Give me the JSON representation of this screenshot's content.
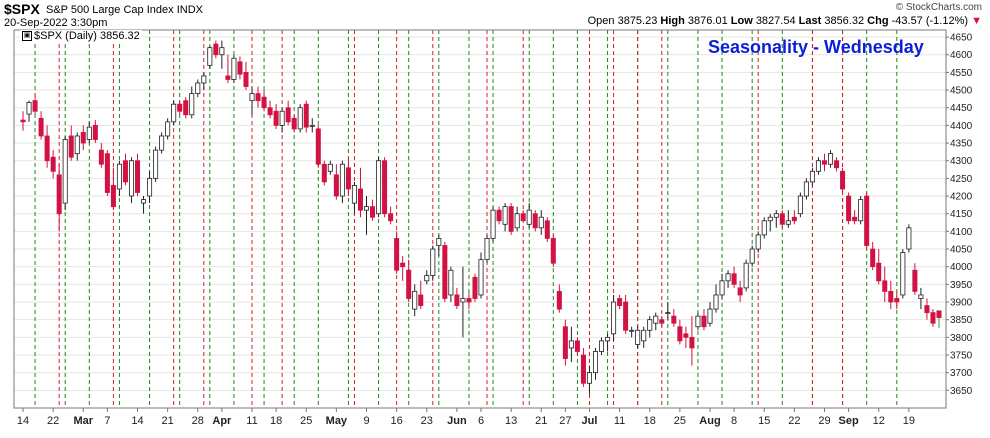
{
  "header": {
    "symbol": "$SPX",
    "name": "S&P 500 Large Cap Index",
    "exchange": "INDX",
    "date": "20-Sep-2022 3:30pm",
    "watermark": "© StockCharts.com",
    "open_label": "Open",
    "open": "3875.23",
    "high_label": "High",
    "high": "3876.01",
    "low_label": "Low",
    "low": "3827.54",
    "last_label": "Last",
    "last": "3856.32",
    "chg_label": "Chg",
    "chg": "-43.57 (-1.12%)",
    "chg_arrow": "▼"
  },
  "legend": "$SPX (Daily) 3856.32",
  "title": "Seasonality - Wednesday",
  "colors": {
    "title": "#0b1fd8",
    "up_candle": "#ffffff",
    "down_candle": "#d21242",
    "grid": "#e6e6e6",
    "green_vline": "#1a8c1a",
    "red_vline": "#d42020"
  },
  "chart_data": {
    "type": "candlestick",
    "title": "Seasonality - Wednesday",
    "ylim": [
      3600,
      4670
    ],
    "y_ticks": [
      3650,
      3700,
      3750,
      3800,
      3850,
      3900,
      3950,
      4000,
      4050,
      4100,
      4150,
      4200,
      4250,
      4300,
      4350,
      4400,
      4450,
      4500,
      4550,
      4600,
      4650
    ],
    "x_ticks": [
      {
        "label": "14",
        "i": 0
      },
      {
        "label": "22",
        "i": 5
      },
      {
        "label": "Mar",
        "i": 10,
        "bold": true
      },
      {
        "label": "7",
        "i": 14
      },
      {
        "label": "14",
        "i": 19
      },
      {
        "label": "21",
        "i": 24
      },
      {
        "label": "28",
        "i": 29
      },
      {
        "label": "Apr",
        "i": 33,
        "bold": true
      },
      {
        "label": "11",
        "i": 38
      },
      {
        "label": "18",
        "i": 42
      },
      {
        "label": "25",
        "i": 47
      },
      {
        "label": "May",
        "i": 52,
        "bold": true
      },
      {
        "label": "9",
        "i": 57
      },
      {
        "label": "16",
        "i": 62
      },
      {
        "label": "23",
        "i": 67
      },
      {
        "label": "Jun",
        "i": 72,
        "bold": true
      },
      {
        "label": "6",
        "i": 76
      },
      {
        "label": "13",
        "i": 81
      },
      {
        "label": "21",
        "i": 86
      },
      {
        "label": "27",
        "i": 90
      },
      {
        "label": "Jul",
        "i": 94,
        "bold": true
      },
      {
        "label": "11",
        "i": 99
      },
      {
        "label": "18",
        "i": 104
      },
      {
        "label": "25",
        "i": 109
      },
      {
        "label": "Aug",
        "i": 114,
        "bold": true
      },
      {
        "label": "8",
        "i": 118
      },
      {
        "label": "15",
        "i": 123
      },
      {
        "label": "22",
        "i": 128
      },
      {
        "label": "29",
        "i": 133
      },
      {
        "label": "Sep",
        "i": 137,
        "bold": true
      },
      {
        "label": "12",
        "i": 142
      },
      {
        "label": "19",
        "i": 147
      }
    ],
    "green_vlines": [
      2,
      7,
      11,
      16,
      21,
      26,
      31,
      35,
      40,
      45,
      49,
      54,
      59,
      64,
      69,
      74,
      78,
      84,
      88,
      92,
      97,
      102,
      107,
      112,
      116,
      121,
      126,
      131,
      136,
      140,
      145
    ],
    "red_vlines": [
      6,
      15,
      25,
      30,
      38,
      43,
      55,
      62,
      68,
      77,
      83,
      94,
      98,
      102,
      106,
      122,
      131,
      136
    ],
    "candles": [
      {
        "o": 4415,
        "h": 4440,
        "l": 4385,
        "c": 4410
      },
      {
        "o": 4432,
        "h": 4470,
        "l": 4410,
        "c": 4465
      },
      {
        "o": 4470,
        "h": 4490,
        "l": 4430,
        "c": 4440
      },
      {
        "o": 4420,
        "h": 4440,
        "l": 4360,
        "c": 4370
      },
      {
        "o": 4370,
        "h": 4400,
        "l": 4280,
        "c": 4300
      },
      {
        "o": 4310,
        "h": 4330,
        "l": 4250,
        "c": 4270
      },
      {
        "o": 4260,
        "h": 4290,
        "l": 4100,
        "c": 4150
      },
      {
        "o": 4180,
        "h": 4370,
        "l": 4160,
        "c": 4360
      },
      {
        "o": 4370,
        "h": 4400,
        "l": 4300,
        "c": 4310
      },
      {
        "o": 4320,
        "h": 4380,
        "l": 4300,
        "c": 4370
      },
      {
        "o": 4380,
        "h": 4400,
        "l": 4330,
        "c": 4350
      },
      {
        "o": 4360,
        "h": 4410,
        "l": 4350,
        "c": 4395
      },
      {
        "o": 4400,
        "h": 4415,
        "l": 4350,
        "c": 4360
      },
      {
        "o": 4330,
        "h": 4350,
        "l": 4280,
        "c": 4290
      },
      {
        "o": 4320,
        "h": 4330,
        "l": 4200,
        "c": 4210
      },
      {
        "o": 4230,
        "h": 4280,
        "l": 4160,
        "c": 4170
      },
      {
        "o": 4220,
        "h": 4300,
        "l": 4200,
        "c": 4290
      },
      {
        "o": 4300,
        "h": 4320,
        "l": 4230,
        "c": 4240
      },
      {
        "o": 4200,
        "h": 4310,
        "l": 4180,
        "c": 4300
      },
      {
        "o": 4300,
        "h": 4320,
        "l": 4200,
        "c": 4210
      },
      {
        "o": 4180,
        "h": 4200,
        "l": 4150,
        "c": 4190
      },
      {
        "o": 4200,
        "h": 4270,
        "l": 4180,
        "c": 4250
      },
      {
        "o": 4250,
        "h": 4340,
        "l": 4240,
        "c": 4330
      },
      {
        "o": 4330,
        "h": 4380,
        "l": 4320,
        "c": 4370
      },
      {
        "o": 4370,
        "h": 4420,
        "l": 4360,
        "c": 4410
      },
      {
        "o": 4410,
        "h": 4470,
        "l": 4400,
        "c": 4460
      },
      {
        "o": 4460,
        "h": 4470,
        "l": 4430,
        "c": 4440
      },
      {
        "o": 4470,
        "h": 4480,
        "l": 4420,
        "c": 4430
      },
      {
        "o": 4430,
        "h": 4510,
        "l": 4420,
        "c": 4490
      },
      {
        "o": 4490,
        "h": 4530,
        "l": 4480,
        "c": 4520
      },
      {
        "o": 4520,
        "h": 4550,
        "l": 4500,
        "c": 4540
      },
      {
        "o": 4570,
        "h": 4625,
        "l": 4560,
        "c": 4620
      },
      {
        "o": 4630,
        "h": 4640,
        "l": 4590,
        "c": 4600
      },
      {
        "o": 4600,
        "h": 4640,
        "l": 4560,
        "c": 4620
      },
      {
        "o": 4540,
        "h": 4600,
        "l": 4520,
        "c": 4530
      },
      {
        "o": 4530,
        "h": 4600,
        "l": 4520,
        "c": 4590
      },
      {
        "o": 4580,
        "h": 4595,
        "l": 4530,
        "c": 4545
      },
      {
        "o": 4550,
        "h": 4580,
        "l": 4500,
        "c": 4510
      },
      {
        "o": 4470,
        "h": 4510,
        "l": 4430,
        "c": 4490
      },
      {
        "o": 4490,
        "h": 4510,
        "l": 4450,
        "c": 4470
      },
      {
        "o": 4480,
        "h": 4500,
        "l": 4440,
        "c": 4450
      },
      {
        "o": 4450,
        "h": 4470,
        "l": 4420,
        "c": 4430
      },
      {
        "o": 4440,
        "h": 4460,
        "l": 4390,
        "c": 4400
      },
      {
        "o": 4400,
        "h": 4450,
        "l": 4380,
        "c": 4440
      },
      {
        "o": 4450,
        "h": 4470,
        "l": 4400,
        "c": 4410
      },
      {
        "o": 4420,
        "h": 4430,
        "l": 4380,
        "c": 4390
      },
      {
        "o": 4390,
        "h": 4460,
        "l": 4380,
        "c": 4450
      },
      {
        "o": 4460,
        "h": 4470,
        "l": 4380,
        "c": 4395
      },
      {
        "o": 4400,
        "h": 4420,
        "l": 4380,
        "c": 4400
      },
      {
        "o": 4390,
        "h": 4400,
        "l": 4280,
        "c": 4290
      },
      {
        "o": 4290,
        "h": 4300,
        "l": 4230,
        "c": 4240
      },
      {
        "o": 4270,
        "h": 4300,
        "l": 4260,
        "c": 4290
      },
      {
        "o": 4260,
        "h": 4290,
        "l": 4190,
        "c": 4200
      },
      {
        "o": 4200,
        "h": 4300,
        "l": 4180,
        "c": 4290
      },
      {
        "o": 4280,
        "h": 4310,
        "l": 4200,
        "c": 4220
      },
      {
        "o": 4180,
        "h": 4240,
        "l": 4150,
        "c": 4230
      },
      {
        "o": 4220,
        "h": 4280,
        "l": 4140,
        "c": 4160
      },
      {
        "o": 4160,
        "h": 4200,
        "l": 4090,
        "c": 4170
      },
      {
        "o": 4170,
        "h": 4190,
        "l": 4130,
        "c": 4140
      },
      {
        "o": 4150,
        "h": 4310,
        "l": 4140,
        "c": 4300
      },
      {
        "o": 4300,
        "h": 4310,
        "l": 4140,
        "c": 4150
      },
      {
        "o": 4150,
        "h": 4170,
        "l": 4120,
        "c": 4130
      },
      {
        "o": 4080,
        "h": 4100,
        "l": 3980,
        "c": 3990
      },
      {
        "o": 4010,
        "h": 4030,
        "l": 3960,
        "c": 4000
      },
      {
        "o": 3990,
        "h": 4020,
        "l": 3900,
        "c": 3910
      },
      {
        "o": 3880,
        "h": 3950,
        "l": 3860,
        "c": 3930
      },
      {
        "o": 3920,
        "h": 3960,
        "l": 3880,
        "c": 3890
      },
      {
        "o": 3960,
        "h": 3990,
        "l": 3950,
        "c": 3975
      },
      {
        "o": 3975,
        "h": 4060,
        "l": 3960,
        "c": 4050
      },
      {
        "o": 4060,
        "h": 4090,
        "l": 4030,
        "c": 4080
      },
      {
        "o": 4060,
        "h": 4070,
        "l": 3900,
        "c": 3910
      },
      {
        "o": 3920,
        "h": 4000,
        "l": 3900,
        "c": 3990
      },
      {
        "o": 3920,
        "h": 3940,
        "l": 3880,
        "c": 3890
      },
      {
        "o": 3900,
        "h": 4000,
        "l": 3800,
        "c": 3910
      },
      {
        "o": 3910,
        "h": 3930,
        "l": 3880,
        "c": 3900
      },
      {
        "o": 3970,
        "h": 3980,
        "l": 3900,
        "c": 3910
      },
      {
        "o": 3920,
        "h": 4040,
        "l": 3910,
        "c": 4020
      },
      {
        "o": 4020,
        "h": 4090,
        "l": 4010,
        "c": 4080
      },
      {
        "o": 4080,
        "h": 4170,
        "l": 4070,
        "c": 4160
      },
      {
        "o": 4160,
        "h": 4170,
        "l": 4120,
        "c": 4130
      },
      {
        "o": 4120,
        "h": 4180,
        "l": 4100,
        "c": 4170
      },
      {
        "o": 4170,
        "h": 4180,
        "l": 4090,
        "c": 4100
      },
      {
        "o": 4110,
        "h": 4170,
        "l": 4100,
        "c": 4150
      },
      {
        "o": 4150,
        "h": 4160,
        "l": 4130,
        "c": 4130
      },
      {
        "o": 4120,
        "h": 4180,
        "l": 4110,
        "c": 4160
      },
      {
        "o": 4150,
        "h": 4160,
        "l": 4100,
        "c": 4110
      },
      {
        "o": 4110,
        "h": 4160,
        "l": 4090,
        "c": 4140
      },
      {
        "o": 4130,
        "h": 4140,
        "l": 4070,
        "c": 4080
      },
      {
        "o": 4080,
        "h": 4090,
        "l": 4000,
        "c": 4010
      },
      {
        "o": 3930,
        "h": 3950,
        "l": 3870,
        "c": 3880
      },
      {
        "o": 3830,
        "h": 3850,
        "l": 3720,
        "c": 3740
      },
      {
        "o": 3770,
        "h": 3830,
        "l": 3730,
        "c": 3790
      },
      {
        "o": 3790,
        "h": 3800,
        "l": 3750,
        "c": 3760
      },
      {
        "o": 3750,
        "h": 3770,
        "l": 3660,
        "c": 3670
      },
      {
        "o": 3670,
        "h": 3720,
        "l": 3640,
        "c": 3700
      },
      {
        "o": 3700,
        "h": 3770,
        "l": 3680,
        "c": 3760
      },
      {
        "o": 3760,
        "h": 3800,
        "l": 3750,
        "c": 3790
      },
      {
        "o": 3790,
        "h": 3810,
        "l": 3760,
        "c": 3800
      },
      {
        "o": 3810,
        "h": 3920,
        "l": 3790,
        "c": 3900
      },
      {
        "o": 3910,
        "h": 3920,
        "l": 3880,
        "c": 3890
      },
      {
        "o": 3900,
        "h": 3920,
        "l": 3810,
        "c": 3820
      },
      {
        "o": 3820,
        "h": 3830,
        "l": 3800,
        "c": 3820
      },
      {
        "o": 3780,
        "h": 3830,
        "l": 3770,
        "c": 3820
      },
      {
        "o": 3790,
        "h": 3830,
        "l": 3770,
        "c": 3820
      },
      {
        "o": 3820,
        "h": 3860,
        "l": 3800,
        "c": 3850
      },
      {
        "o": 3840,
        "h": 3870,
        "l": 3820,
        "c": 3860
      },
      {
        "o": 3850,
        "h": 3860,
        "l": 3830,
        "c": 3840
      },
      {
        "o": 3870,
        "h": 3900,
        "l": 3850,
        "c": 3870
      },
      {
        "o": 3860,
        "h": 3880,
        "l": 3830,
        "c": 3840
      },
      {
        "o": 3830,
        "h": 3850,
        "l": 3780,
        "c": 3790
      },
      {
        "o": 3810,
        "h": 3830,
        "l": 3770,
        "c": 3800
      },
      {
        "o": 3800,
        "h": 3860,
        "l": 3720,
        "c": 3770
      },
      {
        "o": 3830,
        "h": 3870,
        "l": 3820,
        "c": 3860
      },
      {
        "o": 3860,
        "h": 3880,
        "l": 3820,
        "c": 3830
      },
      {
        "o": 3840,
        "h": 3900,
        "l": 3830,
        "c": 3880
      },
      {
        "o": 3880,
        "h": 3950,
        "l": 3870,
        "c": 3920
      },
      {
        "o": 3920,
        "h": 3980,
        "l": 3910,
        "c": 3960
      },
      {
        "o": 3960,
        "h": 3990,
        "l": 3940,
        "c": 3980
      },
      {
        "o": 3980,
        "h": 4000,
        "l": 3940,
        "c": 3950
      },
      {
        "o": 3940,
        "h": 3960,
        "l": 3900,
        "c": 3920
      },
      {
        "o": 3940,
        "h": 4020,
        "l": 3930,
        "c": 4010
      },
      {
        "o": 4010,
        "h": 4060,
        "l": 4000,
        "c": 4050
      },
      {
        "o": 4050,
        "h": 4100,
        "l": 4040,
        "c": 4090
      },
      {
        "o": 4090,
        "h": 4140,
        "l": 4080,
        "c": 4130
      },
      {
        "o": 4130,
        "h": 4150,
        "l": 4100,
        "c": 4140
      },
      {
        "o": 4140,
        "h": 4160,
        "l": 4110,
        "c": 4150
      },
      {
        "o": 4150,
        "h": 4160,
        "l": 4110,
        "c": 4120
      },
      {
        "o": 4120,
        "h": 4160,
        "l": 4110,
        "c": 4130
      },
      {
        "o": 4140,
        "h": 4160,
        "l": 4120,
        "c": 4130
      },
      {
        "o": 4150,
        "h": 4210,
        "l": 4140,
        "c": 4200
      },
      {
        "o": 4200,
        "h": 4250,
        "l": 4190,
        "c": 4240
      },
      {
        "o": 4240,
        "h": 4280,
        "l": 4230,
        "c": 4270
      },
      {
        "o": 4270,
        "h": 4310,
        "l": 4260,
        "c": 4300
      },
      {
        "o": 4300,
        "h": 4320,
        "l": 4270,
        "c": 4290
      },
      {
        "o": 4290,
        "h": 4330,
        "l": 4280,
        "c": 4320
      },
      {
        "o": 4300,
        "h": 4310,
        "l": 4270,
        "c": 4280
      },
      {
        "o": 4270,
        "h": 4280,
        "l": 4210,
        "c": 4220
      },
      {
        "o": 4200,
        "h": 4210,
        "l": 4120,
        "c": 4130
      },
      {
        "o": 4140,
        "h": 4160,
        "l": 4120,
        "c": 4130
      },
      {
        "o": 4130,
        "h": 4200,
        "l": 4120,
        "c": 4190
      },
      {
        "o": 4200,
        "h": 4210,
        "l": 4050,
        "c": 4060
      },
      {
        "o": 4050,
        "h": 4070,
        "l": 3990,
        "c": 4000
      },
      {
        "o": 4010,
        "h": 4050,
        "l": 3950,
        "c": 3960
      },
      {
        "o": 3960,
        "h": 4000,
        "l": 3900,
        "c": 3930
      },
      {
        "o": 3930,
        "h": 3960,
        "l": 3880,
        "c": 3900
      },
      {
        "o": 3910,
        "h": 3930,
        "l": 3880,
        "c": 3900
      },
      {
        "o": 3920,
        "h": 4050,
        "l": 3910,
        "c": 4040
      },
      {
        "o": 4050,
        "h": 4120,
        "l": 4040,
        "c": 4110
      },
      {
        "o": 3990,
        "h": 4010,
        "l": 3920,
        "c": 3930
      },
      {
        "o": 3910,
        "h": 3940,
        "l": 3880,
        "c": 3920
      },
      {
        "o": 3890,
        "h": 3910,
        "l": 3850,
        "c": 3870
      },
      {
        "o": 3870,
        "h": 3880,
        "l": 3830,
        "c": 3840
      },
      {
        "o": 3875,
        "h": 3876,
        "l": 3827,
        "c": 3856
      }
    ]
  }
}
